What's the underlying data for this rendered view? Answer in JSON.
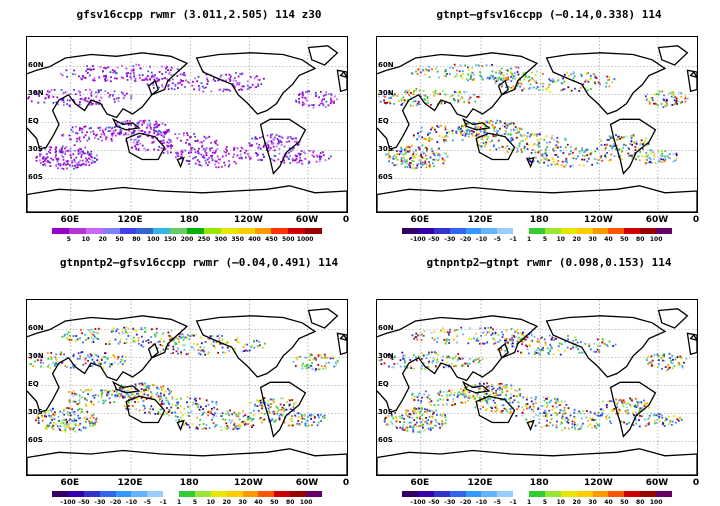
{
  "panels": [
    {
      "title": "gfsv16ccpp  rwmr  (3.011,2.505)  114  z30",
      "lat_labels": [
        "60N",
        "30N",
        "EQ",
        "30S",
        "60S"
      ],
      "lon_labels": [
        "60E",
        "120E",
        "180",
        "120W",
        "60W",
        "0"
      ],
      "colorbar": {
        "labels": [
          "5",
          "10",
          "20",
          "50",
          "80",
          "100",
          "150",
          "200",
          "250",
          "300",
          "350",
          "400",
          "450",
          "500",
          "1000"
        ],
        "colors": [
          "#9900cc",
          "#b833d6",
          "#cc66ff",
          "#8080ff",
          "#4040e6",
          "#3366cc",
          "#33b3e6",
          "#66cc66",
          "#00b300",
          "#99e600",
          "#e6e600",
          "#ffcc00",
          "#ff9900",
          "#ff3300",
          "#cc0000",
          "#990000"
        ]
      },
      "field": "single"
    },
    {
      "title": "gtnpt–gfsv16ccpp  (–0.14,0.338)  114",
      "lat_labels": [
        "60N",
        "30N",
        "EQ",
        "30S",
        "60S"
      ],
      "lon_labels": [
        "60E",
        "120E",
        "180",
        "120W",
        "60W",
        "0"
      ],
      "colorbar": {
        "labels": [
          "–100",
          "–50",
          "–30",
          "–20",
          "–10",
          "–5",
          "–1",
          "1",
          "5",
          "10",
          "20",
          "30",
          "40",
          "50",
          "80",
          "100"
        ],
        "colors": [
          "#330066",
          "#3300aa",
          "#3333cc",
          "#3366ee",
          "#3399ff",
          "#66b3ff",
          "#99ccff",
          "#ffffff",
          "#33cc33",
          "#99e633",
          "#e6e600",
          "#ffcc00",
          "#ff9900",
          "#ff5500",
          "#cc0000",
          "#990000",
          "#660066"
        ]
      },
      "field": "diff"
    },
    {
      "title": "gtnpntp2–gfsv16ccpp  rwmr  (–0.04,0.491)  114",
      "lat_labels": [
        "60N",
        "30N",
        "EQ",
        "30S",
        "60S"
      ],
      "lon_labels": [
        "60E",
        "120E",
        "180",
        "120W",
        "60W",
        "0"
      ],
      "colorbar": {
        "labels": [
          "–100",
          "–50",
          "–30",
          "–20",
          "–10",
          "–5",
          "–1",
          "1",
          "5",
          "10",
          "20",
          "30",
          "40",
          "50",
          "80",
          "100"
        ],
        "colors": [
          "#330066",
          "#3300aa",
          "#3333cc",
          "#3366ee",
          "#3399ff",
          "#66b3ff",
          "#99ccff",
          "#ffffff",
          "#33cc33",
          "#99e633",
          "#e6e600",
          "#ffcc00",
          "#ff9900",
          "#ff5500",
          "#cc0000",
          "#990000",
          "#660066"
        ]
      },
      "field": "diff"
    },
    {
      "title": "gtnpntp2–gtnpt  rwmr  (0.098,0.153)  114",
      "lat_labels": [
        "60N",
        "30N",
        "EQ",
        "30S",
        "60S"
      ],
      "lon_labels": [
        "60E",
        "120E",
        "180",
        "120W",
        "60W",
        "0"
      ],
      "colorbar": {
        "labels": [
          "–100",
          "–50",
          "–30",
          "–20",
          "–10",
          "–5",
          "–1",
          "1",
          "5",
          "10",
          "20",
          "30",
          "40",
          "50",
          "80",
          "100"
        ],
        "colors": [
          "#330066",
          "#3300aa",
          "#3333cc",
          "#3366ee",
          "#3399ff",
          "#66b3ff",
          "#99ccff",
          "#ffffff",
          "#33cc33",
          "#99e633",
          "#e6e600",
          "#ffcc00",
          "#ff9900",
          "#ff5500",
          "#cc0000",
          "#990000",
          "#660066"
        ]
      },
      "field": "diff"
    }
  ]
}
